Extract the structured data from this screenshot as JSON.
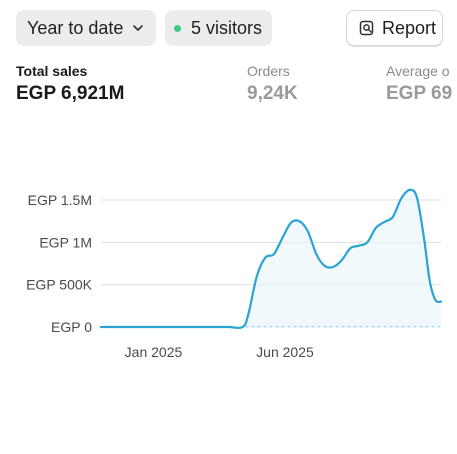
{
  "toolbar": {
    "period_label": "Year to date",
    "visitors_label": "5 visitors",
    "report_label": "Report",
    "live_dot_color": "#3ccb7f"
  },
  "metrics": [
    {
      "label": "Total sales",
      "value": "EGP 6,921M"
    },
    {
      "label": "Orders",
      "value": "9,24K"
    },
    {
      "label": "Average o",
      "value": "EGP 69"
    }
  ],
  "colors": {
    "line": "#29a3d4",
    "baseline": "#29a3d4",
    "grid": "#dedede",
    "area": "#e8f5fb"
  },
  "chart_data": {
    "type": "line",
    "title": "",
    "xlabel": "",
    "ylabel": "",
    "y_ticks": [
      "EGP 1.5M",
      "EGP 1M",
      "EGP 500K",
      "EGP 0"
    ],
    "y_tick_values": [
      1500000,
      1000000,
      500000,
      0
    ],
    "x_ticks": [
      "Jan 2025",
      "Jun 2025"
    ],
    "ylim": [
      0,
      1500000
    ],
    "grid": true,
    "series": [
      {
        "values": [
          [
            0,
            0
          ],
          [
            0.5,
            0
          ],
          [
            1,
            0
          ],
          [
            1.5,
            0
          ],
          [
            2,
            0
          ],
          [
            2.5,
            0
          ],
          [
            3,
            0
          ],
          [
            3.5,
            0
          ],
          [
            4,
            0
          ],
          [
            4.5,
            0
          ],
          [
            5,
            0
          ],
          [
            5.2,
            150000
          ],
          [
            5.5,
            600000
          ],
          [
            5.8,
            820000
          ],
          [
            6.1,
            860000
          ],
          [
            6.4,
            1050000
          ],
          [
            6.7,
            1230000
          ],
          [
            7.0,
            1250000
          ],
          [
            7.3,
            1130000
          ],
          [
            7.6,
            860000
          ],
          [
            7.9,
            720000
          ],
          [
            8.2,
            710000
          ],
          [
            8.5,
            790000
          ],
          [
            8.8,
            930000
          ],
          [
            9.1,
            960000
          ],
          [
            9.4,
            1000000
          ],
          [
            9.7,
            1170000
          ],
          [
            10.0,
            1240000
          ],
          [
            10.3,
            1300000
          ],
          [
            10.6,
            1520000
          ],
          [
            10.9,
            1620000
          ],
          [
            11.15,
            1530000
          ],
          [
            11.4,
            1050000
          ],
          [
            11.6,
            550000
          ],
          [
            11.8,
            320000
          ],
          [
            12,
            300000
          ]
        ]
      }
    ],
    "comparison_series": [
      {
        "values": [
          [
            5.1,
            0
          ],
          [
            12,
            0
          ]
        ]
      }
    ]
  }
}
